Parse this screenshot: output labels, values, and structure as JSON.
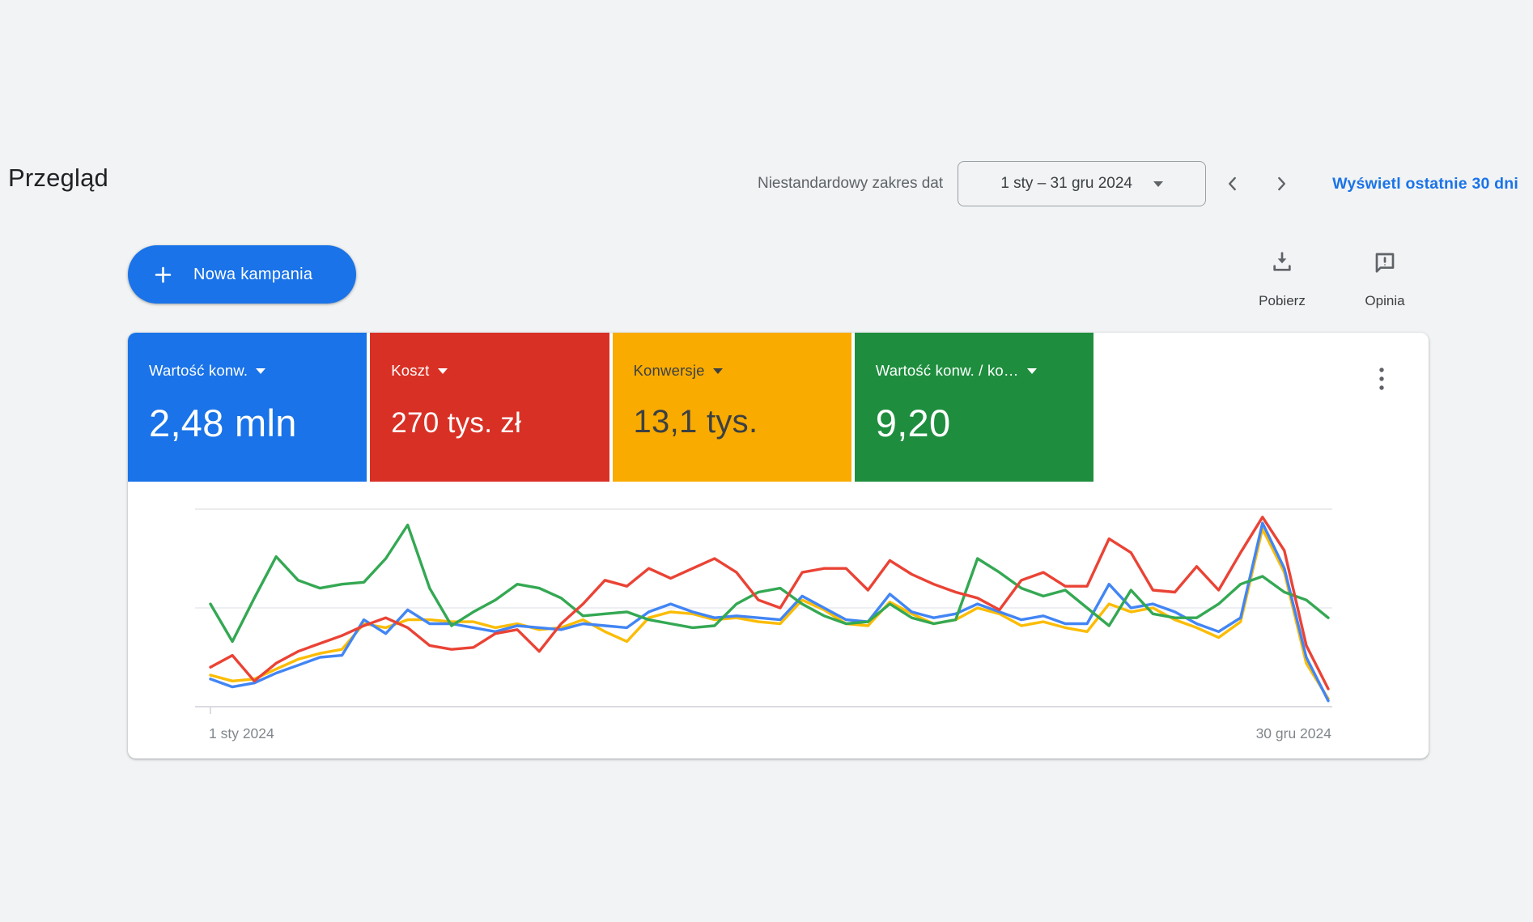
{
  "page": {
    "title": "Przegląd"
  },
  "header": {
    "date_range_label": "Niestandardowy zakres dat",
    "date_range_value": "1 sty – 31 gru 2024",
    "show_last_30_link": "Wyświetl ostatnie 30 dni"
  },
  "toolbar": {
    "new_campaign_label": "Nowa kampania",
    "download_label": "Pobierz",
    "feedback_label": "Opinia"
  },
  "metrics": [
    {
      "label": "Wartość konw.",
      "value": "2,48 mln",
      "color": "#1a73e8",
      "text_color": "#ffffff"
    },
    {
      "label": "Koszt",
      "value": "270 tys. zł",
      "color": "#d93025",
      "text_color": "#ffffff"
    },
    {
      "label": "Konwersje",
      "value": "13,1 tys.",
      "color": "#f9ab00",
      "text_color": "#3c4043"
    },
    {
      "label": "Wartość konw. / ko…",
      "value": "9,20",
      "color": "#1e8e3e",
      "text_color": "#ffffff"
    }
  ],
  "chart_data": {
    "type": "line",
    "title": "",
    "xlabel": "",
    "ylabel": "",
    "x_start_label": "1 sty 2024",
    "x_end_label": "30 gru 2024",
    "x_points": 52,
    "x_unit": "weeks of 2024",
    "y_unit": "normalized 0-1 of plot height (gridlines at 0, 0.5, 1; no y tick labels shown)",
    "grid": [
      "top",
      "middle",
      "bottom-axis"
    ],
    "legend_position": "none (colors match scorecards above)",
    "series": [
      {
        "name": "Wartość konw.",
        "color": "#4285f4",
        "values": [
          0.14,
          0.1,
          0.12,
          0.17,
          0.21,
          0.25,
          0.26,
          0.44,
          0.37,
          0.49,
          0.42,
          0.42,
          0.4,
          0.38,
          0.41,
          0.4,
          0.39,
          0.42,
          0.41,
          0.4,
          0.48,
          0.52,
          0.48,
          0.45,
          0.46,
          0.45,
          0.44,
          0.56,
          0.5,
          0.44,
          0.43,
          0.57,
          0.48,
          0.45,
          0.47,
          0.52,
          0.48,
          0.44,
          0.46,
          0.42,
          0.42,
          0.62,
          0.5,
          0.52,
          0.48,
          0.42,
          0.38,
          0.45,
          0.93,
          0.7,
          0.25,
          0.03
        ]
      },
      {
        "name": "Koszt",
        "color": "#ea4335",
        "values": [
          0.2,
          0.26,
          0.13,
          0.22,
          0.28,
          0.32,
          0.36,
          0.41,
          0.45,
          0.4,
          0.31,
          0.29,
          0.3,
          0.37,
          0.39,
          0.28,
          0.42,
          0.52,
          0.64,
          0.61,
          0.7,
          0.65,
          0.7,
          0.75,
          0.68,
          0.54,
          0.5,
          0.68,
          0.7,
          0.7,
          0.59,
          0.74,
          0.67,
          0.62,
          0.58,
          0.55,
          0.49,
          0.64,
          0.68,
          0.61,
          0.61,
          0.85,
          0.78,
          0.59,
          0.58,
          0.71,
          0.59,
          0.78,
          0.96,
          0.79,
          0.31,
          0.09
        ]
      },
      {
        "name": "Konwersje",
        "color": "#fbbc04",
        "values": [
          0.16,
          0.13,
          0.14,
          0.19,
          0.24,
          0.27,
          0.29,
          0.42,
          0.4,
          0.44,
          0.44,
          0.43,
          0.43,
          0.4,
          0.42,
          0.39,
          0.4,
          0.44,
          0.38,
          0.33,
          0.45,
          0.48,
          0.47,
          0.44,
          0.45,
          0.43,
          0.42,
          0.54,
          0.49,
          0.42,
          0.41,
          0.53,
          0.47,
          0.42,
          0.44,
          0.5,
          0.47,
          0.41,
          0.43,
          0.4,
          0.38,
          0.52,
          0.48,
          0.5,
          0.44,
          0.4,
          0.35,
          0.43,
          0.9,
          0.68,
          0.22,
          0.04
        ]
      },
      {
        "name": "Wartość konw. / koszt",
        "color": "#34a853",
        "values": [
          0.52,
          0.33,
          0.55,
          0.76,
          0.64,
          0.6,
          0.62,
          0.63,
          0.75,
          0.92,
          0.6,
          0.41,
          0.48,
          0.54,
          0.62,
          0.6,
          0.55,
          0.46,
          0.47,
          0.48,
          0.44,
          0.42,
          0.4,
          0.41,
          0.52,
          0.58,
          0.6,
          0.52,
          0.46,
          0.42,
          0.43,
          0.52,
          0.45,
          0.42,
          0.44,
          0.75,
          0.68,
          0.6,
          0.56,
          0.59,
          0.5,
          0.41,
          0.59,
          0.47,
          0.45,
          0.45,
          0.52,
          0.62,
          0.66,
          0.58,
          0.54,
          0.45
        ]
      }
    ]
  },
  "icons": {
    "plus": "plus-icon",
    "download": "download-icon",
    "feedback": "feedback-icon",
    "kebab": "more-options-icon"
  }
}
